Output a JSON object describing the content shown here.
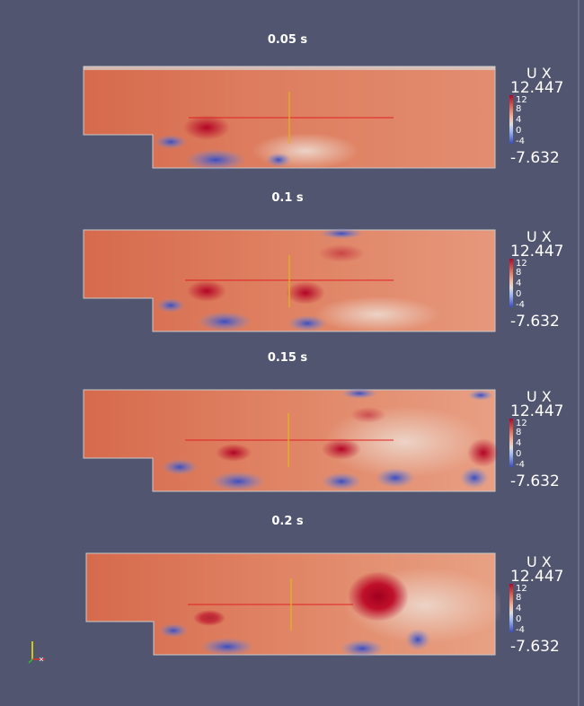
{
  "panels": [
    {
      "time": "0.05 s"
    },
    {
      "time": "0.1 s"
    },
    {
      "time": "0.15 s"
    },
    {
      "time": "0.2 s"
    }
  ],
  "legend": {
    "title": "U X",
    "max": "12.447",
    "min": "-7.632",
    "ticks": [
      "12",
      "8",
      "4",
      "0",
      "-4"
    ]
  },
  "colors": {
    "background": "#525570",
    "domain_base": "#dc7a5a",
    "probe_horizontal": "#e02020",
    "probe_vertical": "#e0b020"
  }
}
